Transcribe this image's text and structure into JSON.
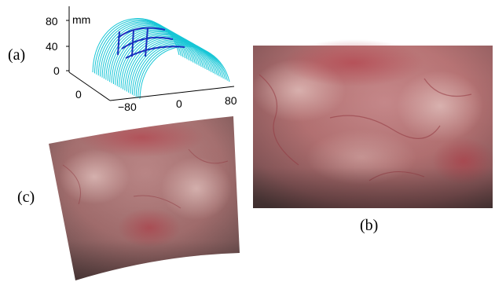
{
  "figure": {
    "panels": [
      {
        "id": "a",
        "label": "(a)"
      },
      {
        "id": "b",
        "label": "(b)"
      },
      {
        "id": "c",
        "label": "(c)"
      }
    ]
  },
  "chart_data": {
    "type": "surface-3d",
    "unit_label": "mm",
    "z_ticks": [
      "0",
      "40",
      "80"
    ],
    "y_ticks": [
      "0"
    ],
    "x_ticks": [
      "−80",
      "0",
      "80"
    ],
    "colors": {
      "mesh": "#17c6d6",
      "overlay": "#1a2fbf",
      "axes": "#000000"
    }
  },
  "images": {
    "b": {
      "description_color_base": "#b57676"
    },
    "c": {
      "description_color_base": "#a47070"
    }
  }
}
